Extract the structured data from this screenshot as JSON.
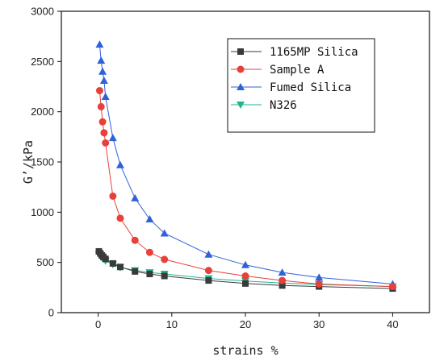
{
  "chart_data": {
    "type": "line",
    "xlabel": "strains %",
    "ylabel": "G’/kPa",
    "xlim": [
      -5,
      45
    ],
    "ylim": [
      0,
      3000
    ],
    "xticks": [
      0,
      10,
      20,
      30,
      40
    ],
    "yticks": [
      0,
      500,
      1000,
      1500,
      2000,
      2500,
      3000
    ],
    "grid": false,
    "legend_position": "top-right",
    "series": [
      {
        "name": "1165MP Silica",
        "marker": "square",
        "color": "#3a3a3a",
        "x": [
          0.1,
          0.3,
          0.5,
          0.7,
          1,
          2,
          3,
          5,
          7,
          9,
          15,
          20,
          25,
          30,
          40
        ],
        "y": [
          610,
          590,
          570,
          555,
          535,
          490,
          455,
          410,
          385,
          365,
          320,
          290,
          270,
          260,
          240
        ]
      },
      {
        "name": "Sample A",
        "marker": "circle",
        "color": "#e8403a",
        "x": [
          0.2,
          0.4,
          0.6,
          0.8,
          1,
          2,
          3,
          5,
          7,
          9,
          15,
          20,
          25,
          30,
          40
        ],
        "y": [
          2210,
          2050,
          1900,
          1790,
          1690,
          1160,
          940,
          720,
          600,
          530,
          420,
          365,
          320,
          285,
          260
        ]
      },
      {
        "name": "Fumed Silica",
        "marker": "triangle-up",
        "color": "#2f62d8",
        "x": [
          0.2,
          0.4,
          0.6,
          0.8,
          1,
          2,
          3,
          5,
          7,
          9,
          15,
          20,
          25,
          30,
          40
        ],
        "y": [
          2670,
          2510,
          2400,
          2310,
          2150,
          1740,
          1470,
          1140,
          930,
          790,
          580,
          475,
          400,
          350,
          285
        ]
      },
      {
        "name": "N326",
        "marker": "triangle-down",
        "color": "#1fb58f",
        "x": [
          0.1,
          0.3,
          0.5,
          0.7,
          1,
          2,
          3,
          5,
          7,
          9,
          15,
          20,
          25,
          30,
          40
        ],
        "y": [
          580,
          565,
          550,
          535,
          515,
          480,
          450,
          420,
          400,
          385,
          340,
          315,
          295,
          280,
          260
        ]
      }
    ]
  }
}
